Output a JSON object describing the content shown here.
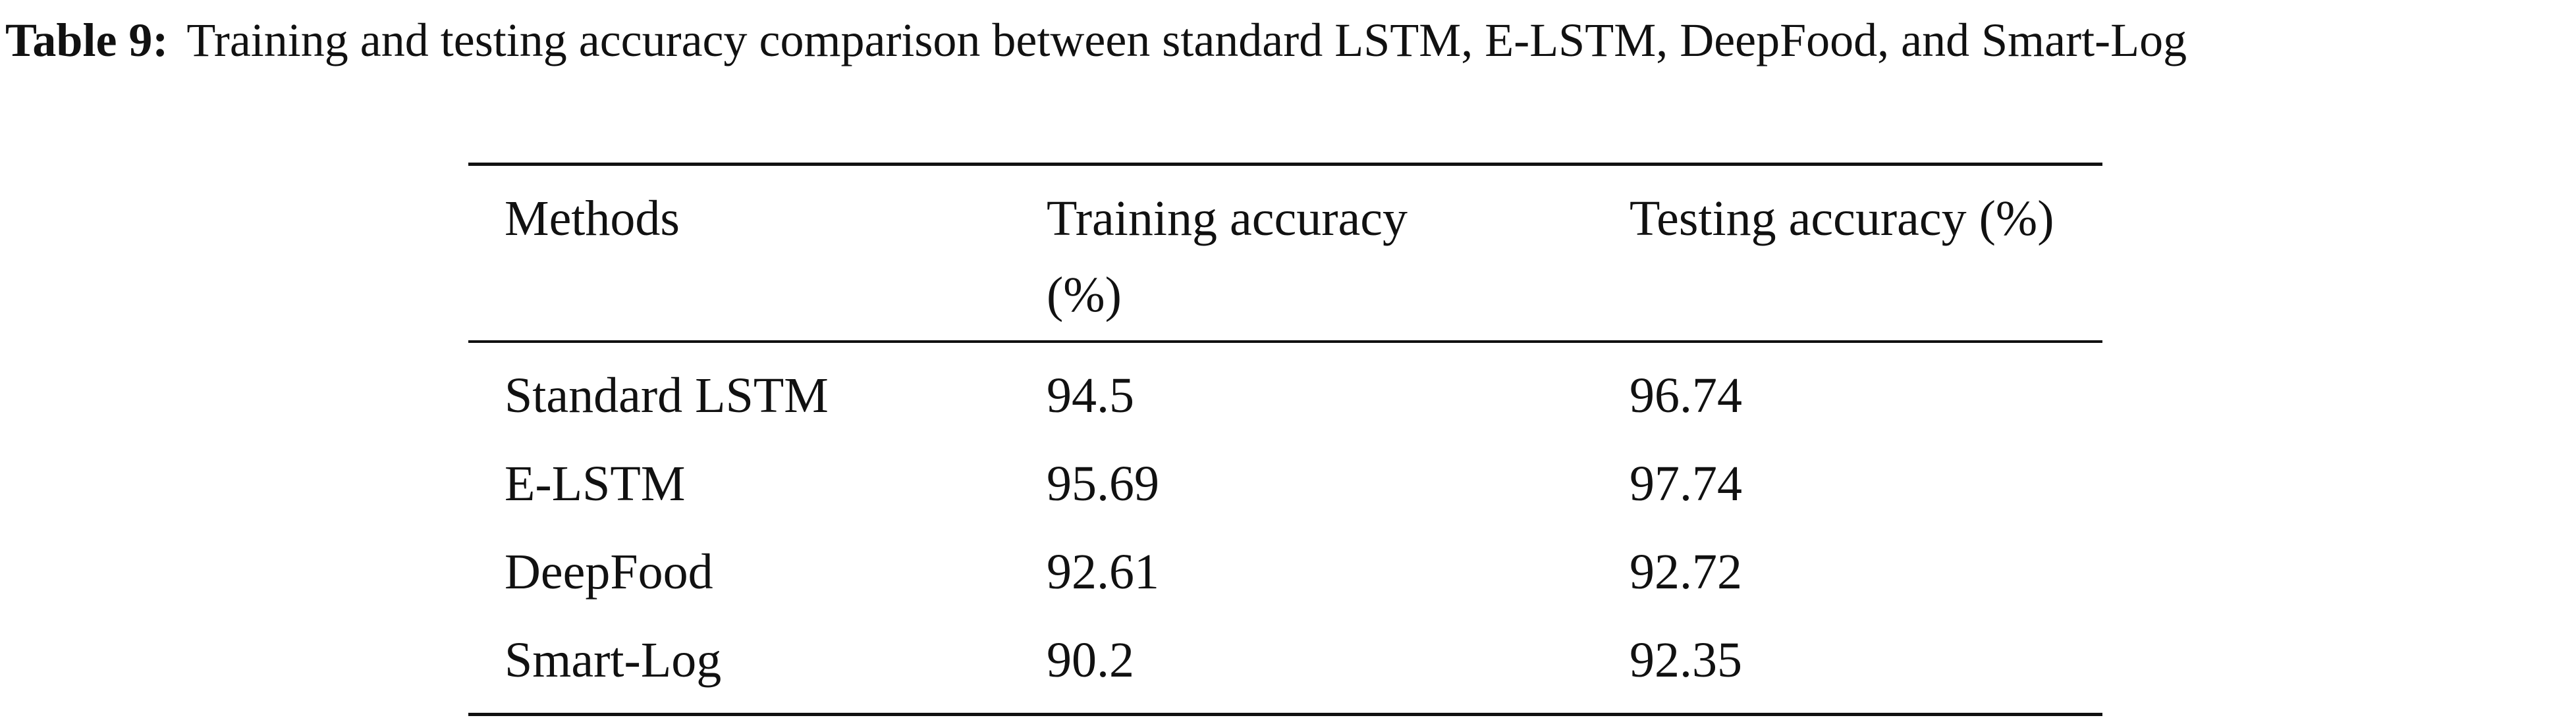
{
  "caption": {
    "label": "Table 9:",
    "text": "Training and testing accuracy comparison between standard LSTM, E-LSTM, DeepFood, and Smart-Log"
  },
  "table": {
    "header": [
      "Methods",
      "Training accuracy (%)",
      "Testing accuracy (%)"
    ],
    "rows": [
      [
        "Standard LSTM",
        "94.5",
        "96.74"
      ],
      [
        "E-LSTM",
        "95.69",
        "97.74"
      ],
      [
        "DeepFood",
        "92.61",
        "92.72"
      ],
      [
        "Smart-Log",
        "90.2",
        "92.35"
      ]
    ]
  }
}
